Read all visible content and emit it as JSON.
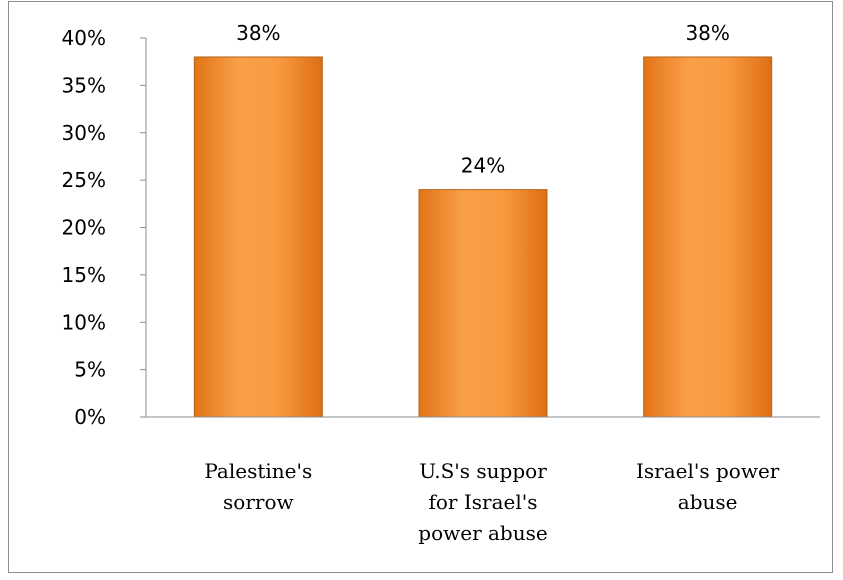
{
  "chart_data": {
    "type": "bar",
    "title": "",
    "xlabel": "",
    "ylabel": "",
    "categories": [
      [
        "Palestine's",
        "sorrow"
      ],
      [
        "U.S's suppor",
        "for Israel's",
        "power abuse"
      ],
      [
        "Israel's power",
        "abuse"
      ]
    ],
    "values": [
      38,
      24,
      38
    ],
    "data_labels": [
      "38%",
      "24%",
      "38%"
    ],
    "ylim": [
      0,
      40
    ],
    "yticks": [
      0,
      5,
      10,
      15,
      20,
      25,
      30,
      35,
      40
    ],
    "ytick_labels": [
      "0%",
      "5%",
      "10%",
      "15%",
      "20%",
      "25%",
      "30%",
      "35%",
      "40%"
    ],
    "grid": false,
    "legend": "none",
    "bar_color": "#F7922E",
    "bar_edge_color": "#B5651D",
    "axis_color": "#8C8C8C"
  }
}
